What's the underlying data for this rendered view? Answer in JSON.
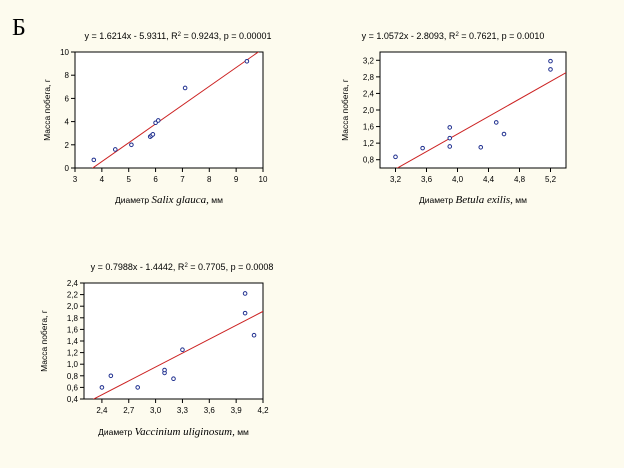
{
  "figure_label": "Б",
  "colors": {
    "background": "#fdfbee",
    "plot_bg": "#ffffff",
    "regression_line": "#cc2222",
    "points": "#1f2f8f"
  },
  "chart_data": [
    {
      "type": "scatter",
      "title": "y = 1.6214x - 5.9311, R² = 0.9243, p = 0.00001",
      "xlabel_prefix": "Диаметр",
      "xlabel_italic": "Salix glauca,",
      "xlabel_suffix": "мм",
      "ylabel": "Масса побега, г",
      "xlim": [
        3,
        10
      ],
      "ylim": [
        0,
        10
      ],
      "x_ticks": [
        "3",
        "4",
        "5",
        "6",
        "7",
        "8",
        "9",
        "10"
      ],
      "x_tick_values": [
        3,
        4,
        5,
        6,
        7,
        8,
        9,
        10
      ],
      "y_ticks": [
        "0",
        "2",
        "4",
        "6",
        "8",
        "10"
      ],
      "y_tick_values": [
        0,
        2,
        4,
        6,
        8,
        10
      ],
      "regression": {
        "slope": 1.6214,
        "intercept": -5.9311
      },
      "x": [
        3.7,
        4.5,
        5.1,
        5.8,
        5.85,
        5.9,
        6.0,
        6.1,
        7.1,
        9.4
      ],
      "y": [
        0.7,
        1.6,
        2.0,
        2.7,
        2.8,
        2.9,
        3.9,
        4.1,
        6.9,
        9.2
      ]
    },
    {
      "type": "scatter",
      "title": "y = 1.0572x - 2.8093, R² = 0.7621, p = 0.0010",
      "xlabel_prefix": "Диаметр",
      "xlabel_italic": "Betula exilis,",
      "xlabel_suffix": "мм",
      "ylabel": "Масса побега, г",
      "xlim": [
        3.0,
        5.4
      ],
      "ylim": [
        0.6,
        3.4
      ],
      "x_ticks": [
        "3,2",
        "3,6",
        "4,0",
        "4,4",
        "4,8",
        "5,2"
      ],
      "x_tick_values": [
        3.2,
        3.6,
        4.0,
        4.4,
        4.8,
        5.2
      ],
      "y_ticks": [
        "0,8",
        "1,2",
        "1,6",
        "2,0",
        "2,4",
        "2,8",
        "3,2"
      ],
      "y_tick_values": [
        0.8,
        1.2,
        1.6,
        2.0,
        2.4,
        2.8,
        3.2
      ],
      "regression": {
        "slope": 1.0572,
        "intercept": -2.8093
      },
      "x": [
        3.2,
        3.55,
        3.9,
        3.9,
        3.9,
        4.3,
        4.5,
        4.6,
        5.2,
        5.2
      ],
      "y": [
        0.87,
        1.08,
        1.12,
        1.32,
        1.58,
        1.1,
        1.7,
        1.42,
        2.98,
        3.18
      ]
    },
    {
      "type": "scatter",
      "title": "y = 0.7988x - 1.4442, R² = 0.7705, p = 0.0008",
      "xlabel_prefix": "Диаметр",
      "xlabel_italic": "Vaccinium uliginosum,",
      "xlabel_suffix": "мм",
      "ylabel": "Масса побега, г",
      "xlim": [
        2.2,
        4.2
      ],
      "ylim": [
        0.4,
        2.4
      ],
      "x_ticks": [
        "2,4",
        "2,7",
        "3,0",
        "3,3",
        "3,6",
        "3,9",
        "4,2"
      ],
      "x_tick_values": [
        2.4,
        2.7,
        3.0,
        3.3,
        3.6,
        3.9,
        4.2
      ],
      "y_ticks": [
        "0,4",
        "0,6",
        "0,8",
        "1,0",
        "1,2",
        "1,4",
        "1,6",
        "1,8",
        "2,0",
        "2,2",
        "2,4"
      ],
      "y_tick_values": [
        0.4,
        0.6,
        0.8,
        1.0,
        1.2,
        1.4,
        1.6,
        1.8,
        2.0,
        2.2,
        2.4
      ],
      "regression": {
        "slope": 0.7988,
        "intercept": -1.4442
      },
      "x": [
        2.4,
        2.5,
        2.8,
        3.1,
        3.1,
        3.2,
        3.3,
        4.0,
        4.0,
        4.1
      ],
      "y": [
        0.6,
        0.8,
        0.6,
        0.85,
        0.9,
        0.75,
        1.25,
        1.88,
        2.22,
        1.5
      ]
    }
  ]
}
